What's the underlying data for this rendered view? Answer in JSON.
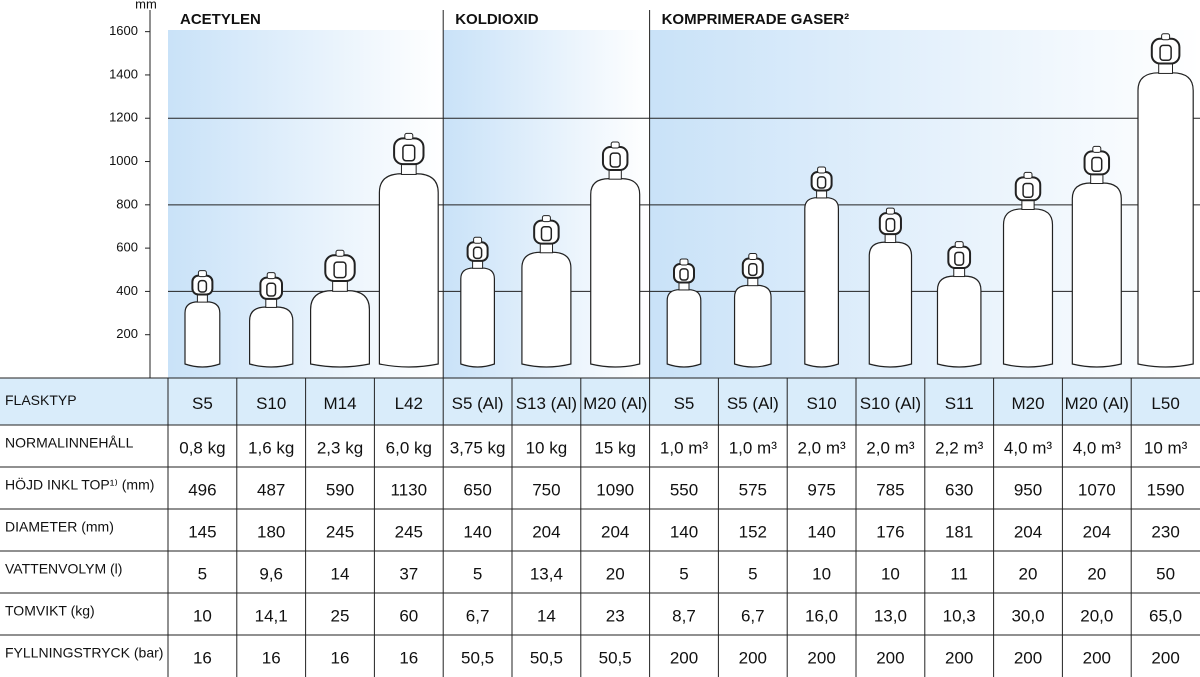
{
  "chart_data": {
    "type": "cylinders",
    "unit": "mm",
    "ylim": [
      0,
      1700
    ],
    "yticks": [
      200,
      400,
      600,
      800,
      1000,
      1200,
      1400,
      1600
    ],
    "grid": [
      400,
      800,
      1200
    ],
    "groups": [
      {
        "name": "ACETYLEN",
        "span": 4
      },
      {
        "name": "KOLDIOXID",
        "span": 3
      },
      {
        "name": "KOMPRIMERADE GASER²",
        "span": 8
      }
    ]
  },
  "table": {
    "header": "FLASKTYP",
    "columns": [
      "S5",
      "S10",
      "M14",
      "L42",
      "S5 (Al)",
      "S13 (Al)",
      "M20 (Al)",
      "S5",
      "S5 (Al)",
      "S10",
      "S10 (Al)",
      "S11",
      "M20",
      "M20 (Al)",
      "L50"
    ],
    "rows": [
      {
        "label": "NORMALINNEHÅLL",
        "values": [
          "0,8 kg",
          "1,6 kg",
          "2,3 kg",
          "6,0 kg",
          "3,75 kg",
          "10 kg",
          "15 kg",
          "1,0 m³",
          "1,0 m³",
          "2,0 m³",
          "2,0 m³",
          "2,2 m³",
          "4,0 m³",
          "4,0 m³",
          "10 m³"
        ]
      },
      {
        "label": "HÖJD INKL TOP¹⁾ (mm)",
        "values": [
          496,
          487,
          590,
          1130,
          650,
          750,
          1090,
          550,
          575,
          975,
          785,
          630,
          950,
          1070,
          1590
        ]
      },
      {
        "label": "DIAMETER (mm)",
        "values": [
          145,
          180,
          245,
          245,
          140,
          204,
          204,
          140,
          152,
          140,
          176,
          181,
          204,
          204,
          230
        ]
      },
      {
        "label": "VATTENVOLYM (l)",
        "values": [
          5,
          "9,6",
          14,
          37,
          5,
          "13,4",
          20,
          5,
          5,
          10,
          10,
          11,
          20,
          20,
          50
        ]
      },
      {
        "label": "TOMVIKT (kg)",
        "values": [
          10,
          "14,1",
          25,
          60,
          "6,7",
          14,
          23,
          "8,7",
          "6,7",
          "16,0",
          "13,0",
          "10,3",
          "30,0",
          "20,0",
          "65,0"
        ]
      },
      {
        "label": "FYLLNINGSTRYCK (bar)",
        "values": [
          16,
          16,
          16,
          16,
          "50,5",
          "50,5",
          "50,5",
          200,
          200,
          200,
          200,
          200,
          200,
          200,
          200
        ]
      }
    ]
  }
}
